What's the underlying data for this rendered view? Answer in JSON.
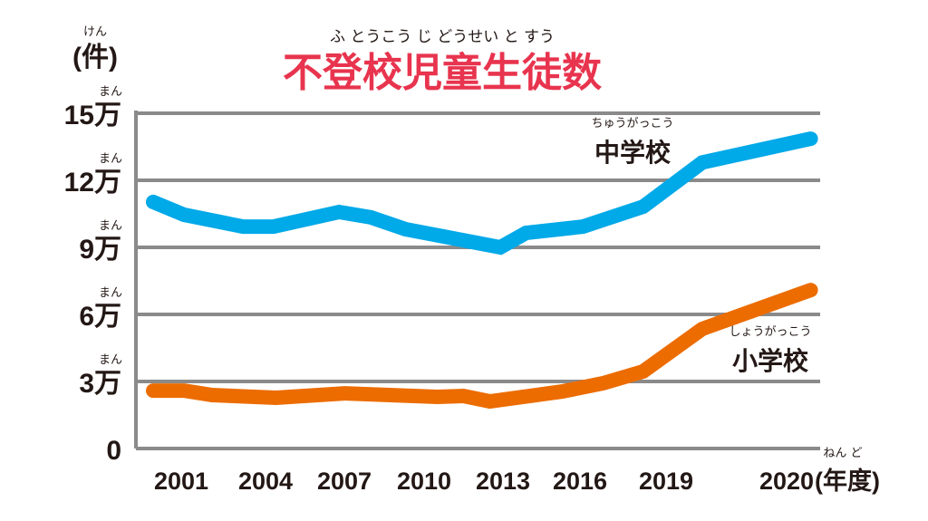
{
  "chart_data": {
    "type": "line",
    "title": "不登校児童生徒数",
    "title_ruby": "ふ とうこう じ どうせい と すう",
    "ylabel": "(件)",
    "ylabel_ruby": "けん",
    "ylim": [
      0,
      150000
    ],
    "y_ticks": [
      {
        "value": 0,
        "label": "0",
        "ruby": ""
      },
      {
        "value": 30000,
        "label": "3万",
        "ruby": "まん"
      },
      {
        "value": 60000,
        "label": "6万",
        "ruby": "まん"
      },
      {
        "value": 90000,
        "label": "9万",
        "ruby": "まん"
      },
      {
        "value": 120000,
        "label": "12万",
        "ruby": "まん"
      },
      {
        "value": 150000,
        "label": "15万",
        "ruby": "まん"
      }
    ],
    "x_ticks": [
      "2001",
      "2004",
      "2007",
      "2010",
      "2013",
      "2016",
      "2019",
      "2020"
    ],
    "x_unit": "(年度)",
    "x_unit_ruby": "ねん ど",
    "grid": true,
    "series": [
      {
        "name": "中学校",
        "name_ruby": "ちゅうがっこう",
        "color": "#00a9e8",
        "x": [
          2000.0,
          2001.1,
          2003.2,
          2004.3,
          2006.8,
          2008.0,
          2009.3,
          2010.9,
          2012.9,
          2013.9,
          2016.1,
          2018.2,
          2019.3,
          2020.2
        ],
        "y": [
          110300,
          104600,
          99300,
          99300,
          105800,
          103400,
          98100,
          94500,
          90000,
          96500,
          99300,
          108200,
          128000,
          138600
        ]
      },
      {
        "name": "小学校",
        "name_ruby": "しょうがっこう",
        "color": "#ec6c00",
        "x": [
          2000.0,
          2001.1,
          2002.1,
          2004.4,
          2007.0,
          2010.5,
          2011.5,
          2012.5,
          2015.3,
          2016.8,
          2018.2,
          2019.3,
          2020.2
        ],
        "y": [
          25900,
          25900,
          23900,
          22700,
          24700,
          23100,
          23500,
          21100,
          25500,
          29200,
          34500,
          53500,
          70900
        ]
      }
    ]
  }
}
